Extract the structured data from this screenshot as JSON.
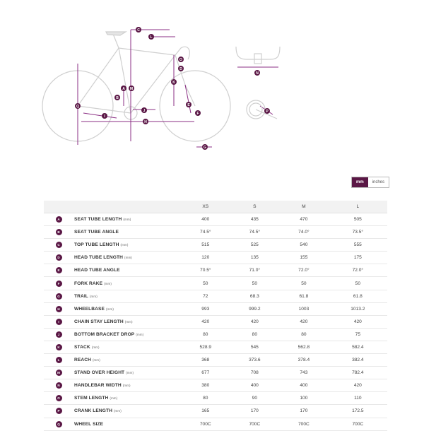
{
  "diagram": {
    "colors": {
      "accent": "#8b2f84",
      "line": "#c9c9c9",
      "label_bg": "#5a1745"
    },
    "letters": [
      "A",
      "B",
      "C",
      "D",
      "E",
      "F",
      "G",
      "H",
      "I",
      "J",
      "K",
      "L",
      "M",
      "N",
      "O",
      "P",
      "Q"
    ]
  },
  "unit_toggle": {
    "mm": "mm",
    "inches": "inches",
    "selected": "mm"
  },
  "table": {
    "columns": [
      "XS",
      "S",
      "M",
      "L"
    ],
    "rows": [
      {
        "letter": "A",
        "name": "SEAT TUBE LENGTH",
        "unit": "(mm)",
        "values": [
          "400",
          "435",
          "470",
          "505"
        ]
      },
      {
        "letter": "B",
        "name": "SEAT TUBE ANGLE",
        "unit": "",
        "values": [
          "74.5°",
          "74.5°",
          "74.0°",
          "73.5°"
        ]
      },
      {
        "letter": "C",
        "name": "TOP TUBE LENGTH",
        "unit": "(mm)",
        "values": [
          "515",
          "525",
          "540",
          "555"
        ]
      },
      {
        "letter": "D",
        "name": "HEAD TUBE LENGTH",
        "unit": "(mm)",
        "values": [
          "120",
          "135",
          "155",
          "175"
        ]
      },
      {
        "letter": "E",
        "name": "HEAD TUBE ANGLE",
        "unit": "",
        "values": [
          "70.5°",
          "71.0°",
          "72.0°",
          "72.0°"
        ]
      },
      {
        "letter": "F",
        "name": "FORK RAKE",
        "unit": "(mm)",
        "values": [
          "50",
          "50",
          "50",
          "50"
        ]
      },
      {
        "letter": "G",
        "name": "TRAIL",
        "unit": "(mm)",
        "values": [
          "72",
          "68.3",
          "61.8",
          "61.8"
        ]
      },
      {
        "letter": "H",
        "name": "WHEELBASE",
        "unit": "(mm)",
        "values": [
          "993",
          "999.2",
          "1003",
          "1013.2"
        ]
      },
      {
        "letter": "I",
        "name": "CHAIN STAY LENGTH",
        "unit": "(mm)",
        "values": [
          "420",
          "420",
          "420",
          "420"
        ]
      },
      {
        "letter": "J",
        "name": "BOTTOM BRACKET DROP",
        "unit": "(mm)",
        "values": [
          "80",
          "80",
          "80",
          "75"
        ]
      },
      {
        "letter": "K",
        "name": "STACK",
        "unit": "(mm)",
        "values": [
          "528.9",
          "545",
          "562.8",
          "582.4"
        ]
      },
      {
        "letter": "L",
        "name": "REACH",
        "unit": "(mm)",
        "values": [
          "368",
          "373.6",
          "378.4",
          "382.4"
        ]
      },
      {
        "letter": "M",
        "name": "STAND OVER HEIGHT",
        "unit": "(mm)",
        "values": [
          "677",
          "708",
          "743",
          "782.4"
        ]
      },
      {
        "letter": "N",
        "name": "HANDLEBAR WIDTH",
        "unit": "(mm)",
        "values": [
          "380",
          "400",
          "400",
          "420"
        ]
      },
      {
        "letter": "O",
        "name": "STEM LENGTH",
        "unit": "(mm)",
        "values": [
          "80",
          "90",
          "100",
          "110"
        ]
      },
      {
        "letter": "P",
        "name": "CRANK LENGTH",
        "unit": "(mm)",
        "values": [
          "165",
          "170",
          "170",
          "172.5"
        ]
      },
      {
        "letter": "Q",
        "name": "WHEEL SIZE",
        "unit": "",
        "values": [
          "700C",
          "700C",
          "700C",
          "700C"
        ]
      }
    ]
  }
}
